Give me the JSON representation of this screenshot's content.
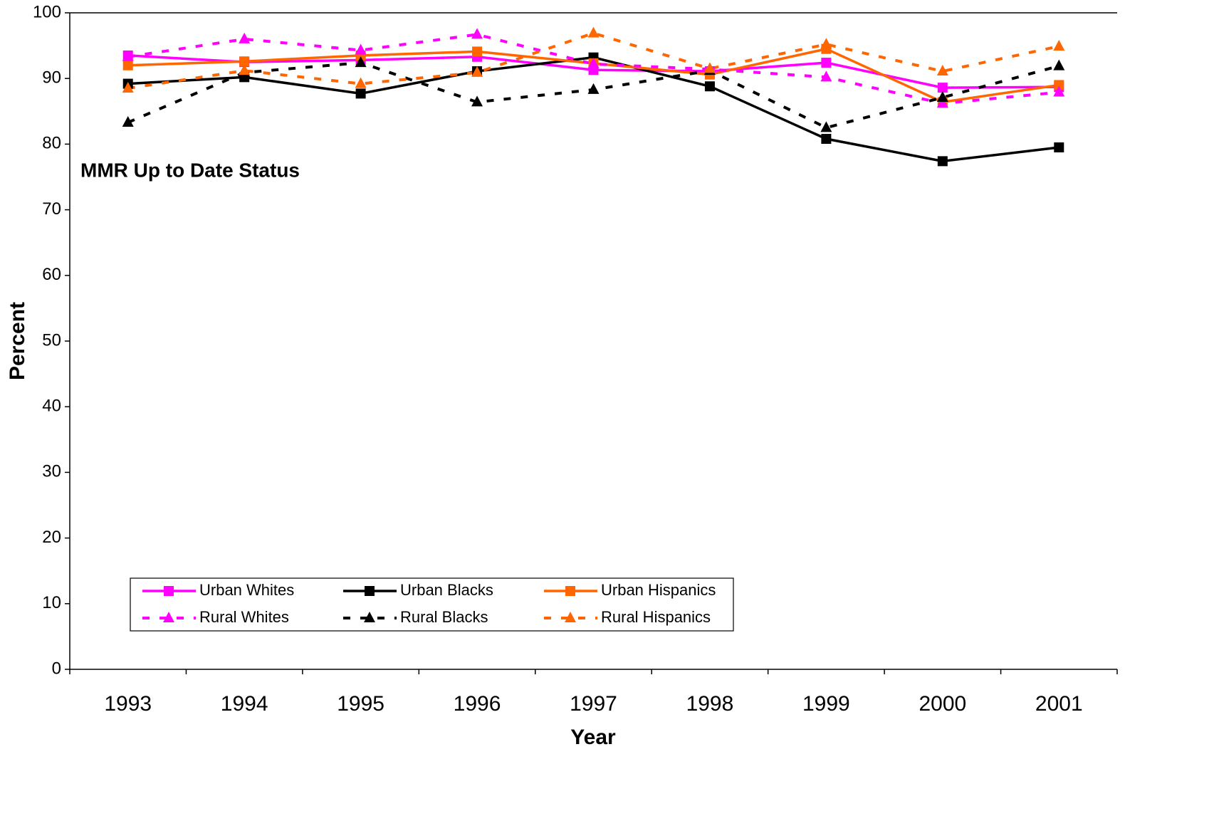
{
  "chart_data": {
    "type": "line",
    "annotation": "MMR Up to Date Status",
    "x_label": "Year",
    "y_label": "Percent",
    "categories": [
      "1993",
      "1994",
      "1995",
      "1996",
      "1997",
      "1998",
      "1999",
      "2000",
      "2001"
    ],
    "series": [
      {
        "name": "Urban Whites",
        "color": "#ff00ff",
        "dashed": false,
        "marker": "square",
        "values": [
          93.5,
          92.5,
          92.8,
          93.3,
          91.3,
          91.1,
          92.4,
          88.6,
          88.7
        ]
      },
      {
        "name": "Urban Blacks",
        "color": "#000000",
        "dashed": false,
        "marker": "square",
        "values": [
          89.2,
          90.2,
          87.7,
          91.1,
          93.2,
          88.8,
          80.8,
          77.4,
          79.5
        ]
      },
      {
        "name": "Urban Hispanics",
        "color": "#ff6600",
        "dashed": false,
        "marker": "square",
        "values": [
          92.0,
          92.6,
          93.5,
          94.1,
          92.3,
          90.6,
          94.5,
          86.4,
          89.0
        ]
      },
      {
        "name": "Rural Whites",
        "color": "#ff00ff",
        "dashed": true,
        "marker": "triangle",
        "values": [
          93.3,
          96.0,
          94.3,
          96.7,
          92.2,
          91.4,
          90.2,
          86.2,
          87.9
        ]
      },
      {
        "name": "Rural Blacks",
        "color": "#000000",
        "dashed": true,
        "marker": "triangle",
        "values": [
          83.3,
          90.9,
          92.4,
          86.4,
          88.3,
          91.2,
          82.5,
          87.1,
          91.9
        ]
      },
      {
        "name": "Rural Hispanics",
        "color": "#ff6600",
        "dashed": true,
        "marker": "triangle",
        "values": [
          88.5,
          91.2,
          89.2,
          90.9,
          96.9,
          91.5,
          95.2,
          91.1,
          94.9
        ]
      }
    ],
    "ylim": [
      0,
      100
    ],
    "yticks": [
      0,
      10,
      20,
      30,
      40,
      50,
      60,
      70,
      80,
      90,
      100
    ],
    "grid": false
  }
}
